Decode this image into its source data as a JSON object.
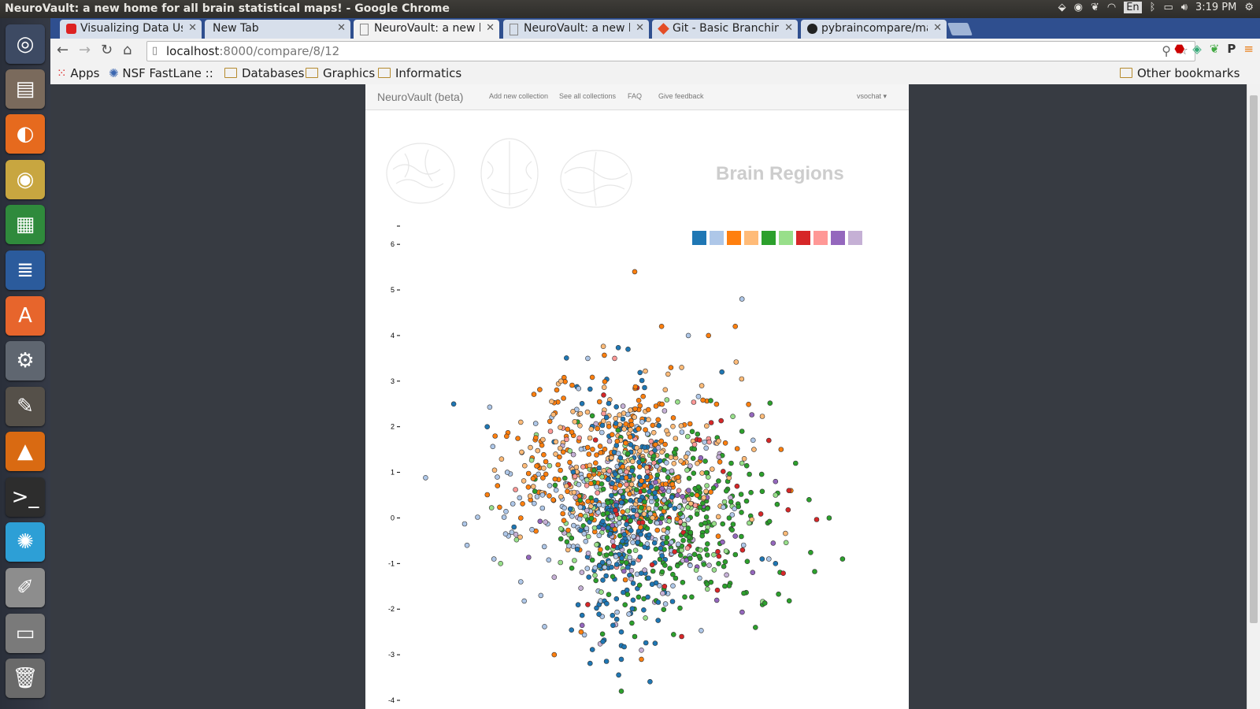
{
  "window_title": "NeuroVault: a new home for all brain statistical maps! - Google Chrome",
  "tray": {
    "keyboard": "En",
    "clock": "3:19 PM"
  },
  "tabs": [
    {
      "label": "Visualizing Data Usi",
      "icon": "youtube-icon"
    },
    {
      "label": "New Tab",
      "icon": "none"
    },
    {
      "label": "NeuroVault: a new h",
      "icon": "page-icon"
    },
    {
      "label": "NeuroVault: a new h",
      "icon": "page-icon"
    },
    {
      "label": "Git - Basic Branching",
      "icon": "git-icon"
    },
    {
      "label": "pybraincompare/ma",
      "icon": "github-icon"
    }
  ],
  "address": {
    "host": "localhost",
    "path": ":8000/compare/8/12"
  },
  "bookmarks": {
    "apps": "Apps",
    "nsf": "NSF FastLane :: G",
    "databases": "Databases",
    "graphics": "Graphics",
    "informatics": "Informatics",
    "other": "Other bookmarks"
  },
  "site_nav": {
    "brand": "NeuroVault (beta)",
    "add": "Add new collection",
    "see_all": "See all collections",
    "faq": "FAQ",
    "feedback": "Give feedback",
    "user": "vsochat ▾"
  },
  "plot_title": "Brain Regions",
  "colors": {
    "accent": "#2f4f8f",
    "page": "#ffffff",
    "desktop": "#3b3e45"
  },
  "chart_data": {
    "type": "scatter",
    "title": "Brain Regions",
    "xlabel": "",
    "ylabel": "",
    "y_ticks": [
      "6",
      "5",
      "4",
      "3",
      "2",
      "1",
      "0",
      "-1",
      "-2",
      "-3",
      "-4"
    ],
    "ylim": [
      -4,
      6.4
    ],
    "xlim": [
      -3.8,
      3.2
    ],
    "grid": false,
    "legend_position": "top-right",
    "legend_colors": [
      "#1f77b4",
      "#aec7e8",
      "#ff7f0e",
      "#ffbb78",
      "#2ca02c",
      "#98df8a",
      "#d62728",
      "#ff9896",
      "#9467bd",
      "#c5b0d5"
    ],
    "series": [
      {
        "color": "#1f77b4",
        "points": [
          [
            -3.0,
            2.5
          ],
          [
            -2.5,
            2.0
          ],
          [
            -0.4,
            3.7
          ],
          [
            1.0,
            3.2
          ],
          [
            -2.1,
            -0.2
          ],
          [
            1.6,
            -0.9
          ],
          [
            1.8,
            -1.0
          ],
          [
            -0.5,
            -3.1
          ],
          [
            -0.5,
            -2.8
          ],
          [
            -0.5,
            -2.5
          ]
        ],
        "cluster": {
          "n": 230,
          "cx": -0.45,
          "cy": 0.0,
          "sx": 0.35,
          "sy": 1.25
        }
      },
      {
        "color": "#aec7e8",
        "points": [
          [
            1.3,
            4.8
          ],
          [
            0.5,
            4.0
          ],
          [
            -1.0,
            3.5
          ],
          [
            -2.2,
            1.0
          ],
          [
            -2.8,
            -0.6
          ],
          [
            -2.4,
            -0.9
          ],
          [
            -2.0,
            -1.4
          ],
          [
            -1.7,
            -1.7
          ],
          [
            1.7,
            -0.9
          ]
        ],
        "cluster": {
          "n": 170,
          "cx": -0.6,
          "cy": 0.2,
          "sx": 0.9,
          "sy": 1.1
        }
      },
      {
        "color": "#ff7f0e",
        "points": [
          [
            -0.3,
            5.4
          ],
          [
            0.1,
            4.2
          ],
          [
            0.8,
            4.0
          ],
          [
            1.2,
            4.2
          ],
          [
            -1.1,
            -2.5
          ],
          [
            -1.5,
            -3.0
          ],
          [
            -0.2,
            -3.1
          ],
          [
            -2.0,
            0.0
          ]
        ],
        "cluster": {
          "n": 210,
          "cx": -0.7,
          "cy": 1.1,
          "sx": 0.8,
          "sy": 1.0
        }
      },
      {
        "color": "#ffbb78",
        "points": [
          [
            0.4,
            3.3
          ],
          [
            -1.4,
            3.0
          ],
          [
            0.7,
            2.9
          ],
          [
            -2.0,
            2.1
          ]
        ],
        "cluster": {
          "n": 170,
          "cx": -0.4,
          "cy": 1.3,
          "sx": 0.8,
          "sy": 0.9
        }
      },
      {
        "color": "#2ca02c",
        "points": [
          [
            -0.5,
            -3.8
          ],
          [
            2.8,
            -0.9
          ],
          [
            2.6,
            0.0
          ],
          [
            2.3,
            0.4
          ],
          [
            2.1,
            1.2
          ],
          [
            1.3,
            1.9
          ],
          [
            1.5,
            -2.4
          ],
          [
            -0.3,
            -2.6
          ]
        ],
        "cluster": {
          "n": 280,
          "cx": 0.25,
          "cy": -0.1,
          "sx": 0.8,
          "sy": 1.0
        }
      },
      {
        "color": "#98df8a",
        "points": [
          [
            1.3,
            1.2
          ],
          [
            -2.3,
            -1.0
          ],
          [
            1.8,
            0.5
          ]
        ],
        "cluster": {
          "n": 90,
          "cx": -0.2,
          "cy": 0.1,
          "sx": 0.8,
          "sy": 0.9
        }
      },
      {
        "color": "#d62728",
        "points": [
          [
            1.7,
            1.7
          ],
          [
            2.0,
            0.6
          ],
          [
            -1.0,
            -1.9
          ],
          [
            0.4,
            -2.6
          ]
        ],
        "cluster": {
          "n": 40,
          "cx": 0.3,
          "cy": 0.2,
          "sx": 0.8,
          "sy": 1.0
        }
      },
      {
        "color": "#ff9896",
        "points": [
          [
            -0.6,
            3.5
          ]
        ],
        "cluster": {
          "n": 40,
          "cx": -0.2,
          "cy": 0.8,
          "sx": 0.8,
          "sy": 1.0
        }
      },
      {
        "color": "#9467bd",
        "points": [
          [
            1.8,
            0.8
          ],
          [
            1.2,
            -0.4
          ]
        ],
        "cluster": {
          "n": 30,
          "cx": 0.2,
          "cy": 0.0,
          "sx": 0.8,
          "sy": 1.0
        }
      },
      {
        "color": "#c5b0d5",
        "points": [
          [
            -1.5,
            -1.3
          ],
          [
            -0.2,
            -2.9
          ]
        ],
        "cluster": {
          "n": 60,
          "cx": -0.3,
          "cy": -0.2,
          "sx": 0.7,
          "sy": 1.1
        }
      }
    ]
  }
}
